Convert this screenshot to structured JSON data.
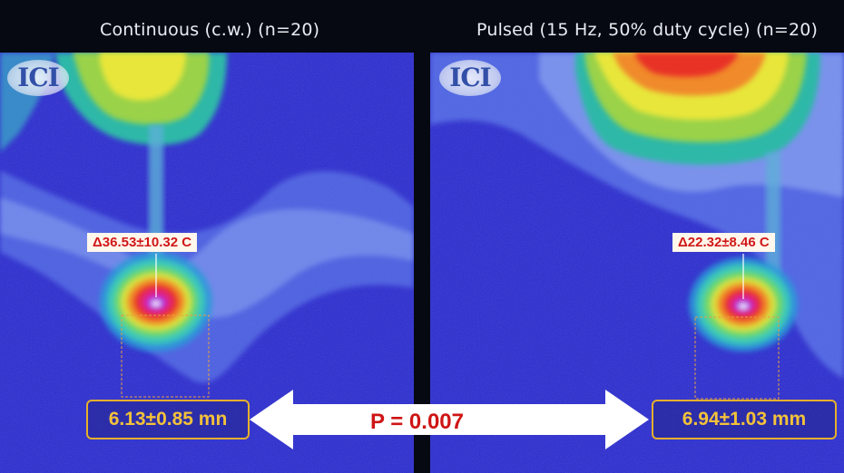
{
  "titles": {
    "left": "Continuous (c.w.) (n=20)",
    "right": "Pulsed (15 Hz, 50% duty cycle) (n=20)"
  },
  "logo_text": "ICI",
  "labels": {
    "left_delta": "Δ36.53±10.32 C",
    "right_delta": "Δ22.32±8.46 C"
  },
  "measurements": {
    "left": "6.13±0.85 mn",
    "right": "6.94±1.03 mm"
  },
  "p_value": "P = 0.007",
  "colors": {
    "background": "#060912",
    "thermal_base": "#2b2fd6",
    "label_text": "#d01818",
    "measure_border": "#e7b02a",
    "measure_text": "#f3c23a",
    "p_text": "#cf1515"
  }
}
